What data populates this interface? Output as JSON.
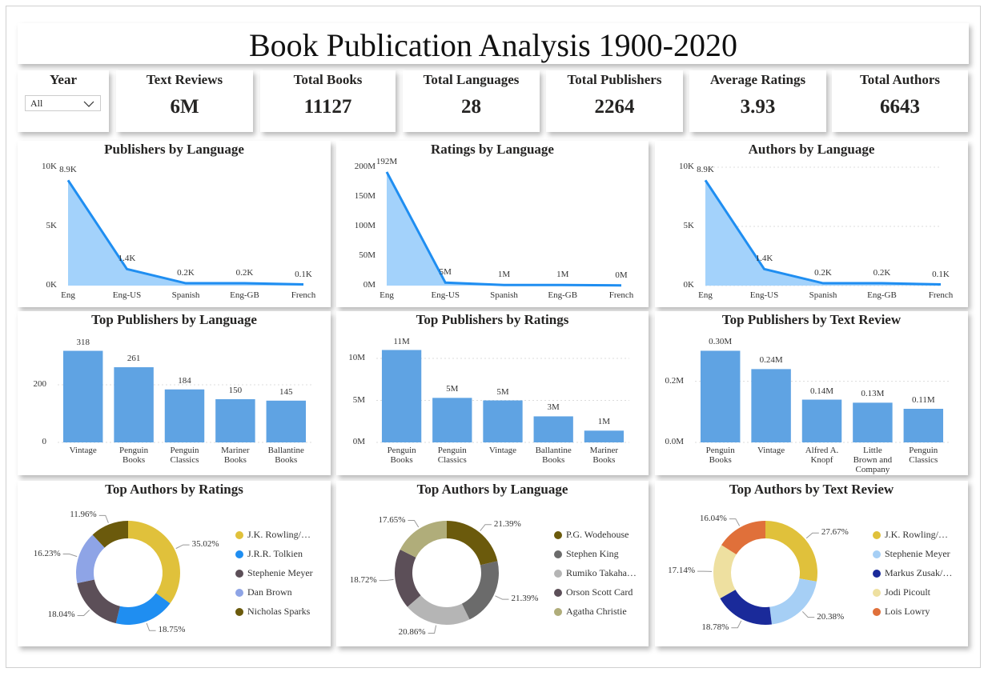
{
  "title": "Book Publication Analysis 1900-2020",
  "slicer": {
    "label": "Year",
    "value": "All"
  },
  "cards": [
    {
      "label": "Text Reviews",
      "value": "6M"
    },
    {
      "label": "Total Books",
      "value": 11127
    },
    {
      "label": "Total Languages",
      "value": 28
    },
    {
      "label": "Total Publishers",
      "value": 2264
    },
    {
      "label": "Average Ratings",
      "value": 3.93
    },
    {
      "label": "Total Authors",
      "value": 6643
    }
  ],
  "chart_data": [
    {
      "type": "area",
      "title": "Publishers by Language",
      "categories": [
        "Eng",
        "Eng-US",
        "Spanish",
        "Eng-GB",
        "French"
      ],
      "values": [
        8900,
        1400,
        200,
        200,
        100
      ],
      "value_labels": [
        "8.9K",
        "1.4K",
        "0.2K",
        "0.2K",
        "0.1K"
      ],
      "color": "#1f8ef1",
      "area_color": "#a3d2fb",
      "ylim": [
        0,
        10000
      ],
      "yticks": [
        {
          "value": 0,
          "label": "0K"
        },
        {
          "value": 5000,
          "label": "5K"
        },
        {
          "value": 10000,
          "label": "10K"
        }
      ],
      "grid": false
    },
    {
      "type": "area",
      "title": "Ratings by Language",
      "categories": [
        "Eng",
        "Eng-US",
        "Spanish",
        "Eng-GB",
        "French"
      ],
      "values": [
        192000000,
        5000000,
        1000000,
        1000000,
        300000
      ],
      "value_labels": [
        "192M",
        "5M",
        "1M",
        "1M",
        "0M"
      ],
      "color": "#1f8ef1",
      "area_color": "#a3d2fb",
      "ylim": [
        0,
        200000000
      ],
      "yticks": [
        {
          "value": 0,
          "label": "0M"
        },
        {
          "value": 50000000,
          "label": "50M"
        },
        {
          "value": 100000000,
          "label": "100M"
        },
        {
          "value": 150000000,
          "label": "150M"
        },
        {
          "value": 200000000,
          "label": "200M"
        }
      ],
      "grid": false
    },
    {
      "type": "area",
      "title": "Authors by Language",
      "categories": [
        "Eng",
        "Eng-US",
        "Spanish",
        "Eng-GB",
        "French"
      ],
      "values": [
        8900,
        1400,
        200,
        200,
        100
      ],
      "value_labels": [
        "8.9K",
        "1.4K",
        "0.2K",
        "0.2K",
        "0.1K"
      ],
      "color": "#1f8ef1",
      "area_color": "#a3d2fb",
      "ylim": [
        0,
        10000
      ],
      "yticks": [
        {
          "value": 0,
          "label": "0K"
        },
        {
          "value": 5000,
          "label": "5K"
        },
        {
          "value": 10000,
          "label": "10K"
        }
      ],
      "grid": true
    },
    {
      "type": "bar",
      "title": "Top Publishers by Language",
      "categories": [
        "Vintage",
        "Penguin Books",
        "Penguin Classics",
        "Mariner Books",
        "Ballantine Books"
      ],
      "values": [
        318,
        261,
        184,
        150,
        145
      ],
      "color": "#5fa3e3",
      "ylim": [
        0,
        350
      ],
      "yticks": [
        0,
        200
      ],
      "grid": true
    },
    {
      "type": "bar",
      "title": "Top Publishers by Ratings",
      "categories": [
        "Penguin Books",
        "Penguin Classics",
        "Vintage",
        "Ballantine Books",
        "Mariner Books"
      ],
      "values": [
        11000000,
        5300000,
        5000000,
        3100000,
        1400000
      ],
      "value_labels": [
        "11M",
        "5M",
        "5M",
        "3M",
        "1M"
      ],
      "color": "#5fa3e3",
      "ylim": [
        0,
        12000000
      ],
      "yticks": [
        {
          "value": 0,
          "label": "0M"
        },
        {
          "value": 5000000,
          "label": "5M"
        },
        {
          "value": 10000000,
          "label": "10M"
        }
      ],
      "grid": true
    },
    {
      "type": "bar",
      "title": "Top Publishers by Text Review",
      "categories": [
        "Penguin Books",
        "Vintage",
        "Alfred A. Knopf",
        "Little Brown and Company",
        "Penguin Classics"
      ],
      "values": [
        300000,
        240000,
        140000,
        130000,
        110000
      ],
      "value_labels": [
        "0.30M",
        "0.24M",
        "0.14M",
        "0.13M",
        "0.11M"
      ],
      "color": "#5fa3e3",
      "ylim": [
        0,
        330000
      ],
      "yticks": [
        {
          "value": 0,
          "label": "0.0M"
        },
        {
          "value": 200000,
          "label": "0.2M"
        }
      ],
      "grid": true
    },
    {
      "type": "donut",
      "title": "Top Authors by Ratings",
      "categories": [
        "J.K. Rowling/…",
        "J.R.R. Tolkien",
        "Stephenie Meyer",
        "Dan Brown",
        "Nicholas Sparks"
      ],
      "values": [
        35.02,
        18.75,
        18.04,
        16.23,
        11.96
      ],
      "value_labels": [
        "35.02%",
        "18.75%",
        "18.04%",
        "16.23%",
        "11.96%"
      ],
      "colors": [
        "#e0c13b",
        "#1f8ef1",
        "#5c4f58",
        "#8ea4e6",
        "#6b5a0c"
      ]
    },
    {
      "type": "donut",
      "title": "Top Authors by Language",
      "categories": [
        "P.G. Wodehouse",
        "Stephen King",
        "Rumiko Takaha…",
        "Orson Scott Card",
        "Agatha Christie"
      ],
      "values": [
        21.39,
        21.39,
        20.86,
        18.72,
        17.65
      ],
      "value_labels": [
        "21.39%",
        "21.39%",
        "20.86%",
        "18.72%",
        "17.65%"
      ],
      "colors": [
        "#6b5a0c",
        "#6b6b6b",
        "#b5b5b5",
        "#5c4f58",
        "#b0ad7a"
      ]
    },
    {
      "type": "donut",
      "title": "Top Authors by Text Review",
      "categories": [
        "J.K. Rowling/…",
        "Stephenie Meyer",
        "Markus Zusak/…",
        "Jodi Picoult",
        "Lois Lowry"
      ],
      "values": [
        27.67,
        20.38,
        18.78,
        17.14,
        16.04
      ],
      "value_labels": [
        "27.67%",
        "20.38%",
        "18.78%",
        "17.14%",
        "16.04%"
      ],
      "colors": [
        "#e0c13b",
        "#a6cff5",
        "#1a2a9a",
        "#eee0a0",
        "#e0703a"
      ]
    }
  ]
}
